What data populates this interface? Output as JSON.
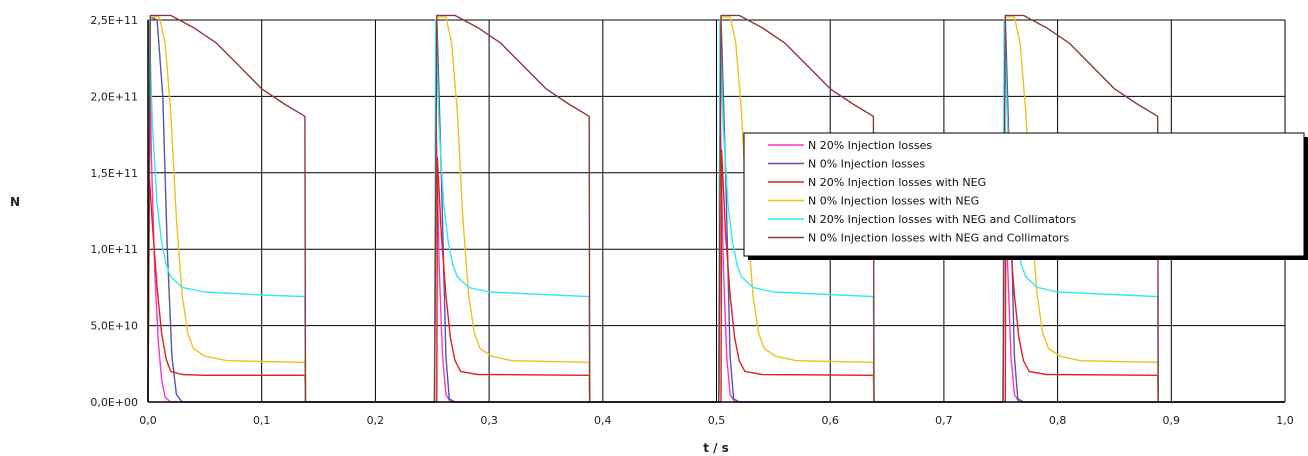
{
  "chart_data": {
    "type": "line",
    "title": "",
    "xlabel": "t / s",
    "ylabel": "N",
    "xlim": [
      0,
      1.0
    ],
    "ylim": [
      0,
      250000000000.0
    ],
    "grid": true,
    "legend_position": "right",
    "x_tick_labels": [
      "0,0",
      "0,1",
      "0,2",
      "0,3",
      "0,4",
      "0,5",
      "0,6",
      "0,7",
      "0,8",
      "0,9",
      "1,0"
    ],
    "y_tick_labels": [
      "0,0E+00",
      "5,0E+10",
      "1,0E+11",
      "1,5E+11",
      "2,0E+11",
      "2,5E+11"
    ],
    "series": [
      {
        "name": "N 20% Injection losses",
        "color": "#ff33cc",
        "points": [
          [
            0.0,
            0
          ],
          [
            0.001,
            250000000000.0
          ],
          [
            0.003,
            160000000000.0
          ],
          [
            0.006,
            85000000000.0
          ],
          [
            0.009,
            40000000000.0
          ],
          [
            0.012,
            15000000000.0
          ],
          [
            0.015,
            3000000000.0
          ],
          [
            0.02,
            0
          ],
          [
            0.252,
            0
          ],
          [
            0.253,
            200000000000.0
          ],
          [
            0.256,
            90000000000.0
          ],
          [
            0.259,
            30000000000.0
          ],
          [
            0.262,
            5000000000.0
          ],
          [
            0.266,
            0
          ],
          [
            0.502,
            0
          ],
          [
            0.503,
            200000000000.0
          ],
          [
            0.506,
            90000000000.0
          ],
          [
            0.509,
            30000000000.0
          ],
          [
            0.512,
            5000000000.0
          ],
          [
            0.516,
            0
          ],
          [
            0.752,
            0
          ],
          [
            0.753,
            200000000000.0
          ],
          [
            0.756,
            90000000000.0
          ],
          [
            0.759,
            30000000000.0
          ],
          [
            0.762,
            5000000000.0
          ],
          [
            0.766,
            0
          ],
          [
            1.0,
            0
          ]
        ]
      },
      {
        "name": "N 0% Injection losses",
        "color": "#5555aa",
        "points": [
          [
            0.0,
            0
          ],
          [
            0.002,
            252000000000.0
          ],
          [
            0.008,
            250000000000.0
          ],
          [
            0.013,
            200000000000.0
          ],
          [
            0.017,
            100000000000.0
          ],
          [
            0.021,
            30000000000.0
          ],
          [
            0.025,
            5000000000.0
          ],
          [
            0.03,
            0
          ],
          [
            0.252,
            0
          ],
          [
            0.254,
            252000000000.0
          ],
          [
            0.258,
            150000000000.0
          ],
          [
            0.262,
            30000000000.0
          ],
          [
            0.265,
            2000000000.0
          ],
          [
            0.27,
            0
          ],
          [
            0.502,
            0
          ],
          [
            0.504,
            252000000000.0
          ],
          [
            0.508,
            150000000000.0
          ],
          [
            0.512,
            30000000000.0
          ],
          [
            0.515,
            2000000000.0
          ],
          [
            0.52,
            0
          ],
          [
            0.752,
            0
          ],
          [
            0.754,
            252000000000.0
          ],
          [
            0.758,
            150000000000.0
          ],
          [
            0.762,
            30000000000.0
          ],
          [
            0.765,
            2000000000.0
          ],
          [
            0.77,
            0
          ],
          [
            1.0,
            0
          ]
        ]
      },
      {
        "name": "N 20% Injection losses with NEG",
        "color": "#dd2222",
        "points": [
          [
            0.0,
            0
          ],
          [
            0.001,
            150000000000.0
          ],
          [
            0.004,
            115000000000.0
          ],
          [
            0.008,
            75000000000.0
          ],
          [
            0.012,
            45000000000.0
          ],
          [
            0.016,
            28000000000.0
          ],
          [
            0.02,
            20000000000.0
          ],
          [
            0.03,
            18000000000.0
          ],
          [
            0.05,
            17500000000.0
          ],
          [
            0.138,
            17500000000.0
          ],
          [
            0.1385,
            0
          ],
          [
            0.254,
            0
          ],
          [
            0.2545,
            160000000000.0
          ],
          [
            0.258,
            110000000000.0
          ],
          [
            0.262,
            70000000000.0
          ],
          [
            0.266,
            42000000000.0
          ],
          [
            0.27,
            27000000000.0
          ],
          [
            0.275,
            20000000000.0
          ],
          [
            0.29,
            18000000000.0
          ],
          [
            0.388,
            17500000000.0
          ],
          [
            0.3885,
            0
          ],
          [
            0.504,
            0
          ],
          [
            0.5045,
            165000000000.0
          ],
          [
            0.508,
            110000000000.0
          ],
          [
            0.512,
            70000000000.0
          ],
          [
            0.516,
            42000000000.0
          ],
          [
            0.52,
            27000000000.0
          ],
          [
            0.525,
            20000000000.0
          ],
          [
            0.54,
            18000000000.0
          ],
          [
            0.638,
            17500000000.0
          ],
          [
            0.6385,
            0
          ],
          [
            0.754,
            0
          ],
          [
            0.7545,
            160000000000.0
          ],
          [
            0.758,
            110000000000.0
          ],
          [
            0.762,
            70000000000.0
          ],
          [
            0.766,
            42000000000.0
          ],
          [
            0.77,
            27000000000.0
          ],
          [
            0.775,
            20000000000.0
          ],
          [
            0.79,
            18000000000.0
          ],
          [
            0.888,
            17500000000.0
          ],
          [
            0.8885,
            0
          ],
          [
            1.0,
            0
          ]
        ]
      },
      {
        "name": "N 0% Injection losses with NEG",
        "color": "#f0c020",
        "points": [
          [
            0.0,
            0
          ],
          [
            0.002,
            252000000000.0
          ],
          [
            0.01,
            252000000000.0
          ],
          [
            0.015,
            235000000000.0
          ],
          [
            0.02,
            190000000000.0
          ],
          [
            0.025,
            120000000000.0
          ],
          [
            0.03,
            70000000000.0
          ],
          [
            0.035,
            45000000000.0
          ],
          [
            0.04,
            35000000000.0
          ],
          [
            0.05,
            30000000000.0
          ],
          [
            0.07,
            27000000000.0
          ],
          [
            0.1,
            26500000000.0
          ],
          [
            0.138,
            26000000000.0
          ],
          [
            0.1385,
            0
          ],
          [
            0.252,
            0
          ],
          [
            0.254,
            252000000000.0
          ],
          [
            0.262,
            252000000000.0
          ],
          [
            0.267,
            235000000000.0
          ],
          [
            0.272,
            190000000000.0
          ],
          [
            0.277,
            120000000000.0
          ],
          [
            0.282,
            70000000000.0
          ],
          [
            0.287,
            45000000000.0
          ],
          [
            0.292,
            35000000000.0
          ],
          [
            0.302,
            30000000000.0
          ],
          [
            0.32,
            27000000000.0
          ],
          [
            0.388,
            26000000000.0
          ],
          [
            0.3885,
            0
          ],
          [
            0.502,
            0
          ],
          [
            0.504,
            252000000000.0
          ],
          [
            0.512,
            252000000000.0
          ],
          [
            0.517,
            235000000000.0
          ],
          [
            0.522,
            190000000000.0
          ],
          [
            0.527,
            120000000000.0
          ],
          [
            0.532,
            70000000000.0
          ],
          [
            0.537,
            45000000000.0
          ],
          [
            0.542,
            35000000000.0
          ],
          [
            0.552,
            30000000000.0
          ],
          [
            0.57,
            27000000000.0
          ],
          [
            0.638,
            26000000000.0
          ],
          [
            0.6385,
            0
          ],
          [
            0.752,
            0
          ],
          [
            0.754,
            252000000000.0
          ],
          [
            0.762,
            252000000000.0
          ],
          [
            0.767,
            235000000000.0
          ],
          [
            0.772,
            190000000000.0
          ],
          [
            0.777,
            120000000000.0
          ],
          [
            0.782,
            70000000000.0
          ],
          [
            0.787,
            45000000000.0
          ],
          [
            0.792,
            35000000000.0
          ],
          [
            0.802,
            30000000000.0
          ],
          [
            0.82,
            27000000000.0
          ],
          [
            0.888,
            26000000000.0
          ],
          [
            0.8885,
            0
          ],
          [
            1.0,
            0
          ]
        ]
      },
      {
        "name": "N 20% Injection losses with NEG and Collimators",
        "color": "#33e8ee",
        "points": [
          [
            0.0,
            0
          ],
          [
            0.001,
            250000000000.0
          ],
          [
            0.004,
            180000000000.0
          ],
          [
            0.008,
            130000000000.0
          ],
          [
            0.012,
            105000000000.0
          ],
          [
            0.016,
            90000000000.0
          ],
          [
            0.02,
            82000000000.0
          ],
          [
            0.03,
            75000000000.0
          ],
          [
            0.05,
            72000000000.0
          ],
          [
            0.1,
            70000000000.0
          ],
          [
            0.138,
            69000000000.0
          ],
          [
            0.1385,
            0
          ],
          [
            0.252,
            0
          ],
          [
            0.253,
            250000000000.0
          ],
          [
            0.256,
            180000000000.0
          ],
          [
            0.26,
            130000000000.0
          ],
          [
            0.264,
            105000000000.0
          ],
          [
            0.268,
            90000000000.0
          ],
          [
            0.272,
            82000000000.0
          ],
          [
            0.282,
            75000000000.0
          ],
          [
            0.3,
            72000000000.0
          ],
          [
            0.388,
            69000000000.0
          ],
          [
            0.3885,
            0
          ],
          [
            0.502,
            0
          ],
          [
            0.503,
            250000000000.0
          ],
          [
            0.506,
            180000000000.0
          ],
          [
            0.51,
            130000000000.0
          ],
          [
            0.514,
            105000000000.0
          ],
          [
            0.518,
            90000000000.0
          ],
          [
            0.522,
            82000000000.0
          ],
          [
            0.532,
            75000000000.0
          ],
          [
            0.55,
            72000000000.0
          ],
          [
            0.638,
            69000000000.0
          ],
          [
            0.6385,
            0
          ],
          [
            0.752,
            0
          ],
          [
            0.753,
            250000000000.0
          ],
          [
            0.756,
            180000000000.0
          ],
          [
            0.76,
            130000000000.0
          ],
          [
            0.764,
            105000000000.0
          ],
          [
            0.768,
            90000000000.0
          ],
          [
            0.772,
            82000000000.0
          ],
          [
            0.782,
            75000000000.0
          ],
          [
            0.8,
            72000000000.0
          ],
          [
            0.888,
            69000000000.0
          ],
          [
            0.8885,
            0
          ],
          [
            1.0,
            0
          ]
        ]
      },
      {
        "name": "N 0% Injection losses with NEG and Collimators",
        "color": "#8b3a3a",
        "points": [
          [
            0.0,
            0
          ],
          [
            0.002,
            253000000000.0
          ],
          [
            0.02,
            253000000000.0
          ],
          [
            0.04,
            245000000000.0
          ],
          [
            0.06,
            235000000000.0
          ],
          [
            0.08,
            220000000000.0
          ],
          [
            0.1,
            205000000000.0
          ],
          [
            0.12,
            195000000000.0
          ],
          [
            0.138,
            187000000000.0
          ],
          [
            0.1385,
            0
          ],
          [
            0.252,
            0
          ],
          [
            0.254,
            253000000000.0
          ],
          [
            0.27,
            253000000000.0
          ],
          [
            0.29,
            245000000000.0
          ],
          [
            0.31,
            235000000000.0
          ],
          [
            0.33,
            220000000000.0
          ],
          [
            0.35,
            205000000000.0
          ],
          [
            0.37,
            195000000000.0
          ],
          [
            0.388,
            187000000000.0
          ],
          [
            0.3885,
            0
          ],
          [
            0.502,
            0
          ],
          [
            0.504,
            253000000000.0
          ],
          [
            0.52,
            253000000000.0
          ],
          [
            0.54,
            245000000000.0
          ],
          [
            0.56,
            235000000000.0
          ],
          [
            0.58,
            220000000000.0
          ],
          [
            0.6,
            205000000000.0
          ],
          [
            0.62,
            195000000000.0
          ],
          [
            0.638,
            187000000000.0
          ],
          [
            0.6385,
            0
          ],
          [
            0.752,
            0
          ],
          [
            0.754,
            253000000000.0
          ],
          [
            0.77,
            253000000000.0
          ],
          [
            0.79,
            245000000000.0
          ],
          [
            0.81,
            235000000000.0
          ],
          [
            0.83,
            220000000000.0
          ],
          [
            0.85,
            205000000000.0
          ],
          [
            0.87,
            195000000000.0
          ],
          [
            0.888,
            187000000000.0
          ],
          [
            0.8885,
            0
          ],
          [
            1.0,
            0
          ]
        ]
      }
    ]
  }
}
